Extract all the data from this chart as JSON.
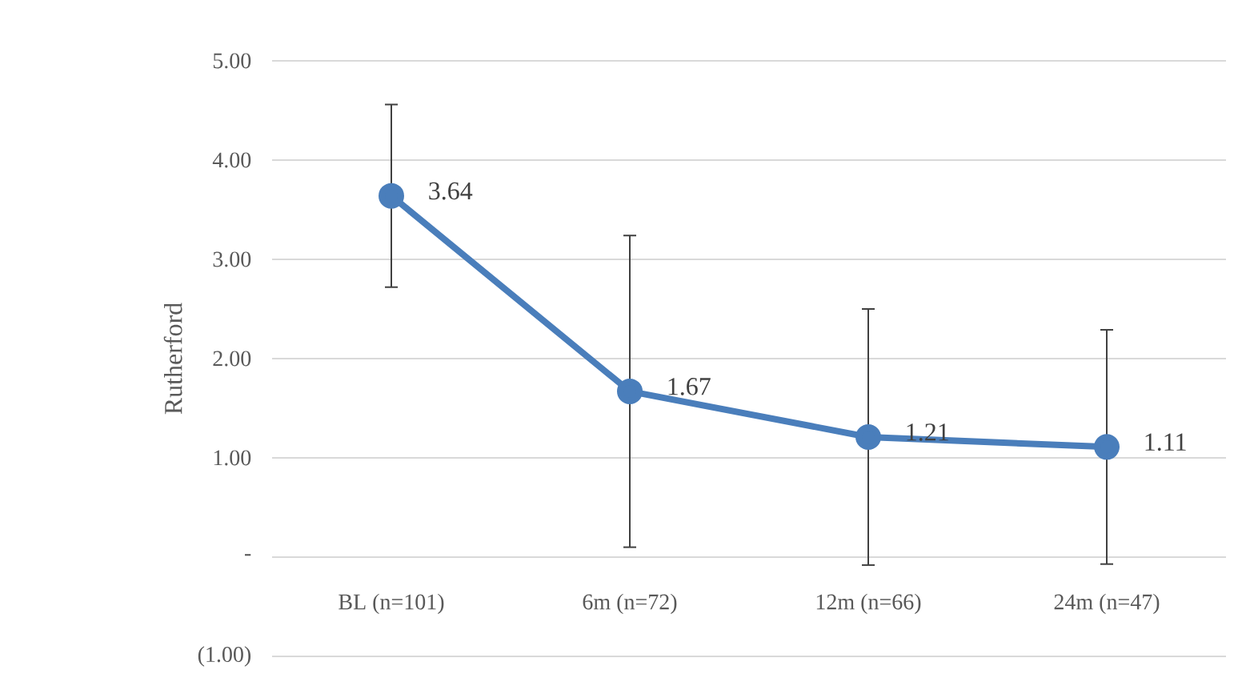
{
  "chart_data": {
    "type": "line",
    "ylabel": "Rutherford",
    "categories": [
      "BL (n=101)",
      "6m (n=72)",
      "12m (n=66)",
      "24m (n=47)"
    ],
    "values": [
      3.64,
      1.67,
      1.21,
      1.11
    ],
    "errors": [
      0.92,
      1.57,
      1.29,
      1.18
    ],
    "color": "#4a7ebb",
    "ylim": [
      -1,
      5
    ],
    "yticks": [
      {
        "value": -1,
        "label": "(1.00)"
      },
      {
        "value": 0,
        "label": "-"
      },
      {
        "value": 1,
        "label": "1.00"
      },
      {
        "value": 2,
        "label": "2.00"
      },
      {
        "value": 3,
        "label": "3.00"
      },
      {
        "value": 4,
        "label": "4.00"
      },
      {
        "value": 5,
        "label": "5.00"
      }
    ],
    "grid": "y",
    "marker": "circle",
    "line_style": "solid",
    "data_labels": true
  }
}
